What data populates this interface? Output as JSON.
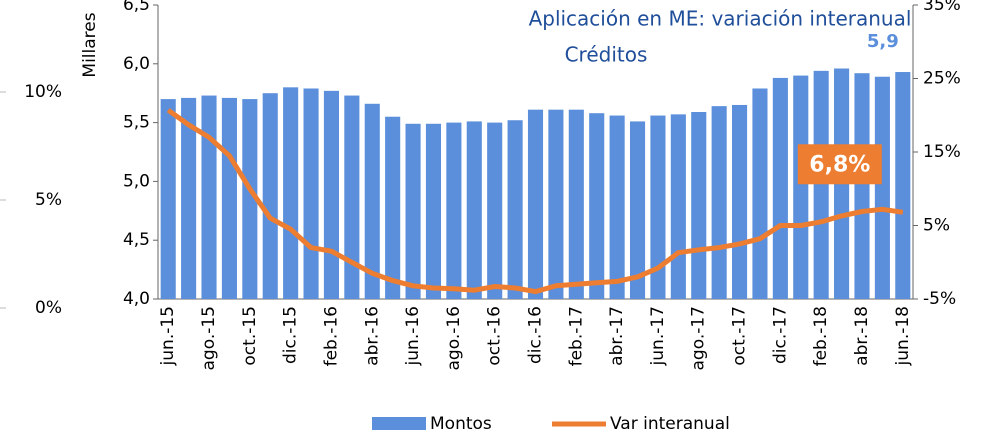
{
  "chart_data": {
    "type": "bar_line",
    "title": [
      "Aplicación en ME: variación interanual",
      "Créditos"
    ],
    "ylabel": "Millares",
    "categories": [
      "jun.-15",
      null,
      "ago.-15",
      null,
      "oct.-15",
      null,
      "dic.-15",
      null,
      "feb.-16",
      null,
      "abr.-16",
      null,
      "jun.-16",
      null,
      "ago.-16",
      null,
      "oct.-16",
      null,
      "dic.-16",
      null,
      "feb.-17",
      null,
      "abr.-17",
      null,
      "jun.-17",
      null,
      "ago.-17",
      null,
      "oct.-17",
      null,
      "dic.-17",
      null,
      "feb.-18",
      null,
      "abr.-18",
      null,
      "jun.-18"
    ],
    "series": [
      {
        "name": "Montos",
        "color": "#5b8fdb",
        "values": [
          5.7,
          5.71,
          5.73,
          5.71,
          5.7,
          5.75,
          5.8,
          5.79,
          5.77,
          5.73,
          5.66,
          5.55,
          5.49,
          5.49,
          5.5,
          5.51,
          5.5,
          5.52,
          5.61,
          5.61,
          5.61,
          5.58,
          5.56,
          5.51,
          5.56,
          5.57,
          5.59,
          5.64,
          5.65,
          5.79,
          5.88,
          5.9,
          5.94,
          5.96,
          5.92,
          5.89,
          5.93
        ],
        "value_labels": [
          null,
          null,
          null,
          null,
          null,
          null,
          null,
          null,
          null,
          null,
          null,
          null,
          null,
          null,
          null,
          null,
          null,
          null,
          null,
          null,
          null,
          null,
          null,
          null,
          null,
          null,
          null,
          null,
          null,
          null,
          null,
          null,
          null,
          null,
          null,
          null,
          "5,9"
        ]
      },
      {
        "name": "Var interanual",
        "color": "#ed7d31",
        "axis": "y2",
        "values": [
          20.7,
          18.7,
          17,
          14.5,
          10,
          6,
          4.5,
          2,
          1.5,
          0,
          -1.5,
          -2.5,
          -3.2,
          -3.5,
          -3.6,
          -3.8,
          -3.3,
          -3.5,
          -4,
          -3.2,
          -3,
          -2.8,
          -2.6,
          -2,
          -0.8,
          1.3,
          1.7,
          2,
          2.5,
          3.2,
          5,
          5,
          5.5,
          6.3,
          6.9,
          7.2,
          6.8
        ],
        "value_labels": [
          null,
          null,
          null,
          null,
          null,
          null,
          null,
          null,
          null,
          null,
          null,
          null,
          null,
          null,
          null,
          null,
          null,
          null,
          null,
          null,
          null,
          null,
          null,
          null,
          null,
          null,
          null,
          null,
          null,
          null,
          null,
          null,
          null,
          null,
          null,
          null,
          "6,8%"
        ]
      }
    ],
    "ylim": [
      4,
      6.5
    ],
    "yticks": [
      {
        "value": 4,
        "label": "4,0"
      },
      {
        "value": 4.5,
        "label": "4,5"
      },
      {
        "value": 5,
        "label": "5,0"
      },
      {
        "value": 5.5,
        "label": "5,5"
      },
      {
        "value": 6,
        "label": "6,0"
      },
      {
        "value": 6.5,
        "label": "6,5"
      }
    ],
    "y2lim": [
      -5,
      35
    ],
    "y2ticks": [
      {
        "value": -5,
        "label": "-5%"
      },
      {
        "value": 5,
        "label": "5%"
      },
      {
        "value": 15,
        "label": "15%"
      },
      {
        "value": 25,
        "label": "25%"
      },
      {
        "value": 35,
        "label": "35%"
      }
    ],
    "legend": "bottom"
  },
  "fragment": {
    "yticks": [
      {
        "value": 0,
        "label": "0%"
      },
      {
        "value": 5,
        "label": "5%"
      },
      {
        "value": 10,
        "label": "10%"
      }
    ]
  }
}
